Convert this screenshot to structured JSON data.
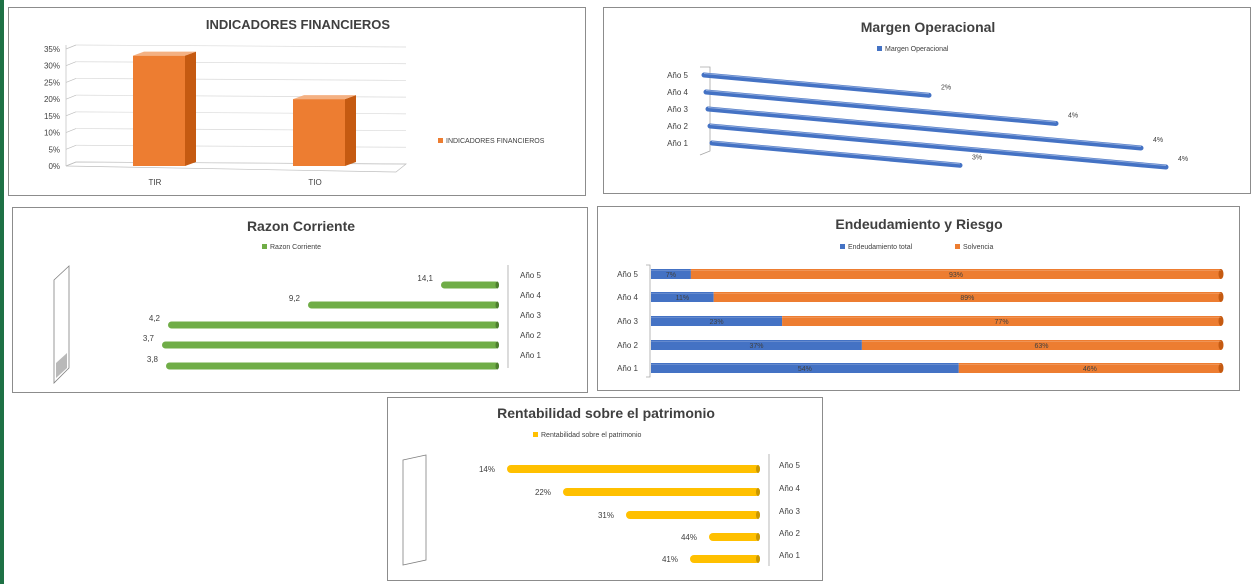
{
  "colors": {
    "orange": "#ed7d31",
    "orange_dark": "#c55a11",
    "blue": "#4472c4",
    "blue_dark": "#2f5597",
    "green": "#70ad47",
    "green_dark": "#4e7f2f",
    "yellow": "#ffc000",
    "yellow_dark": "#c99700",
    "text": "#404040",
    "grid": "#d9d9d9"
  },
  "chart_data": [
    {
      "id": "indicadores",
      "type": "bar",
      "title": "INDICADORES FINANCIEROS",
      "categories": [
        "TIR",
        "TIO"
      ],
      "series": [
        {
          "name": "INDICADORES FINANCIEROS",
          "values": [
            33,
            20
          ]
        }
      ],
      "ylim": [
        0,
        35
      ],
      "yticks": [
        "35%",
        "30%",
        "25%",
        "20%",
        "15%",
        "10%",
        "5%",
        "0%"
      ],
      "legend": "right",
      "grid": true
    },
    {
      "id": "margen",
      "type": "bar",
      "orientation": "horizontal",
      "title": "Margen Operacional",
      "categories": [
        "Año 5",
        "Año 4",
        "Año 3",
        "Año 2",
        "Año 1"
      ],
      "series": [
        {
          "name": "Margen Operacional",
          "values": [
            2,
            4,
            4,
            4,
            3
          ]
        }
      ],
      "data_labels": [
        "2%",
        "4%",
        "4%",
        "4%",
        "3%"
      ],
      "legend": "top"
    },
    {
      "id": "razon",
      "type": "bar",
      "orientation": "horizontal",
      "title": "Razon Corriente",
      "categories": [
        "Año 5",
        "Año 4",
        "Año 3",
        "Año 2",
        "Año 1"
      ],
      "series": [
        {
          "name": "Razon Corriente",
          "values": [
            14.1,
            9.2,
            4.2,
            3.7,
            3.8
          ]
        }
      ],
      "data_labels": [
        "14,1",
        "9,2",
        "4,2",
        "3,7",
        "3,8"
      ],
      "legend": "top",
      "axis_position": "right"
    },
    {
      "id": "endeudamiento",
      "type": "bar",
      "orientation": "horizontal",
      "stacked": "percent",
      "title": "Endeudamiento y Riesgo",
      "categories": [
        "Año 5",
        "Año 4",
        "Año 3",
        "Año 2",
        "Año 1"
      ],
      "series": [
        {
          "name": "Endeudamiento total",
          "values": [
            7,
            11,
            23,
            37,
            54
          ],
          "labels": [
            "7%",
            "11%",
            "23%",
            "37%",
            "54%"
          ]
        },
        {
          "name": "Solvencia",
          "values": [
            93,
            89,
            77,
            63,
            46
          ],
          "labels": [
            "93%",
            "89%",
            "77%",
            "63%",
            "46%"
          ]
        }
      ],
      "legend": "top"
    },
    {
      "id": "rentabilidad",
      "type": "bar",
      "orientation": "horizontal",
      "title": "Rentabilidad sobre el patrimonio",
      "categories": [
        "Año 5",
        "Año 4",
        "Año 3",
        "Año 2",
        "Año 1"
      ],
      "series": [
        {
          "name": "Rentabilidad sobre el patrimonio",
          "values": [
            14,
            22,
            31,
            44,
            41
          ]
        }
      ],
      "data_labels": [
        "14%",
        "22%",
        "31%",
        "44%",
        "41%"
      ],
      "legend": "top",
      "axis_position": "right"
    }
  ]
}
